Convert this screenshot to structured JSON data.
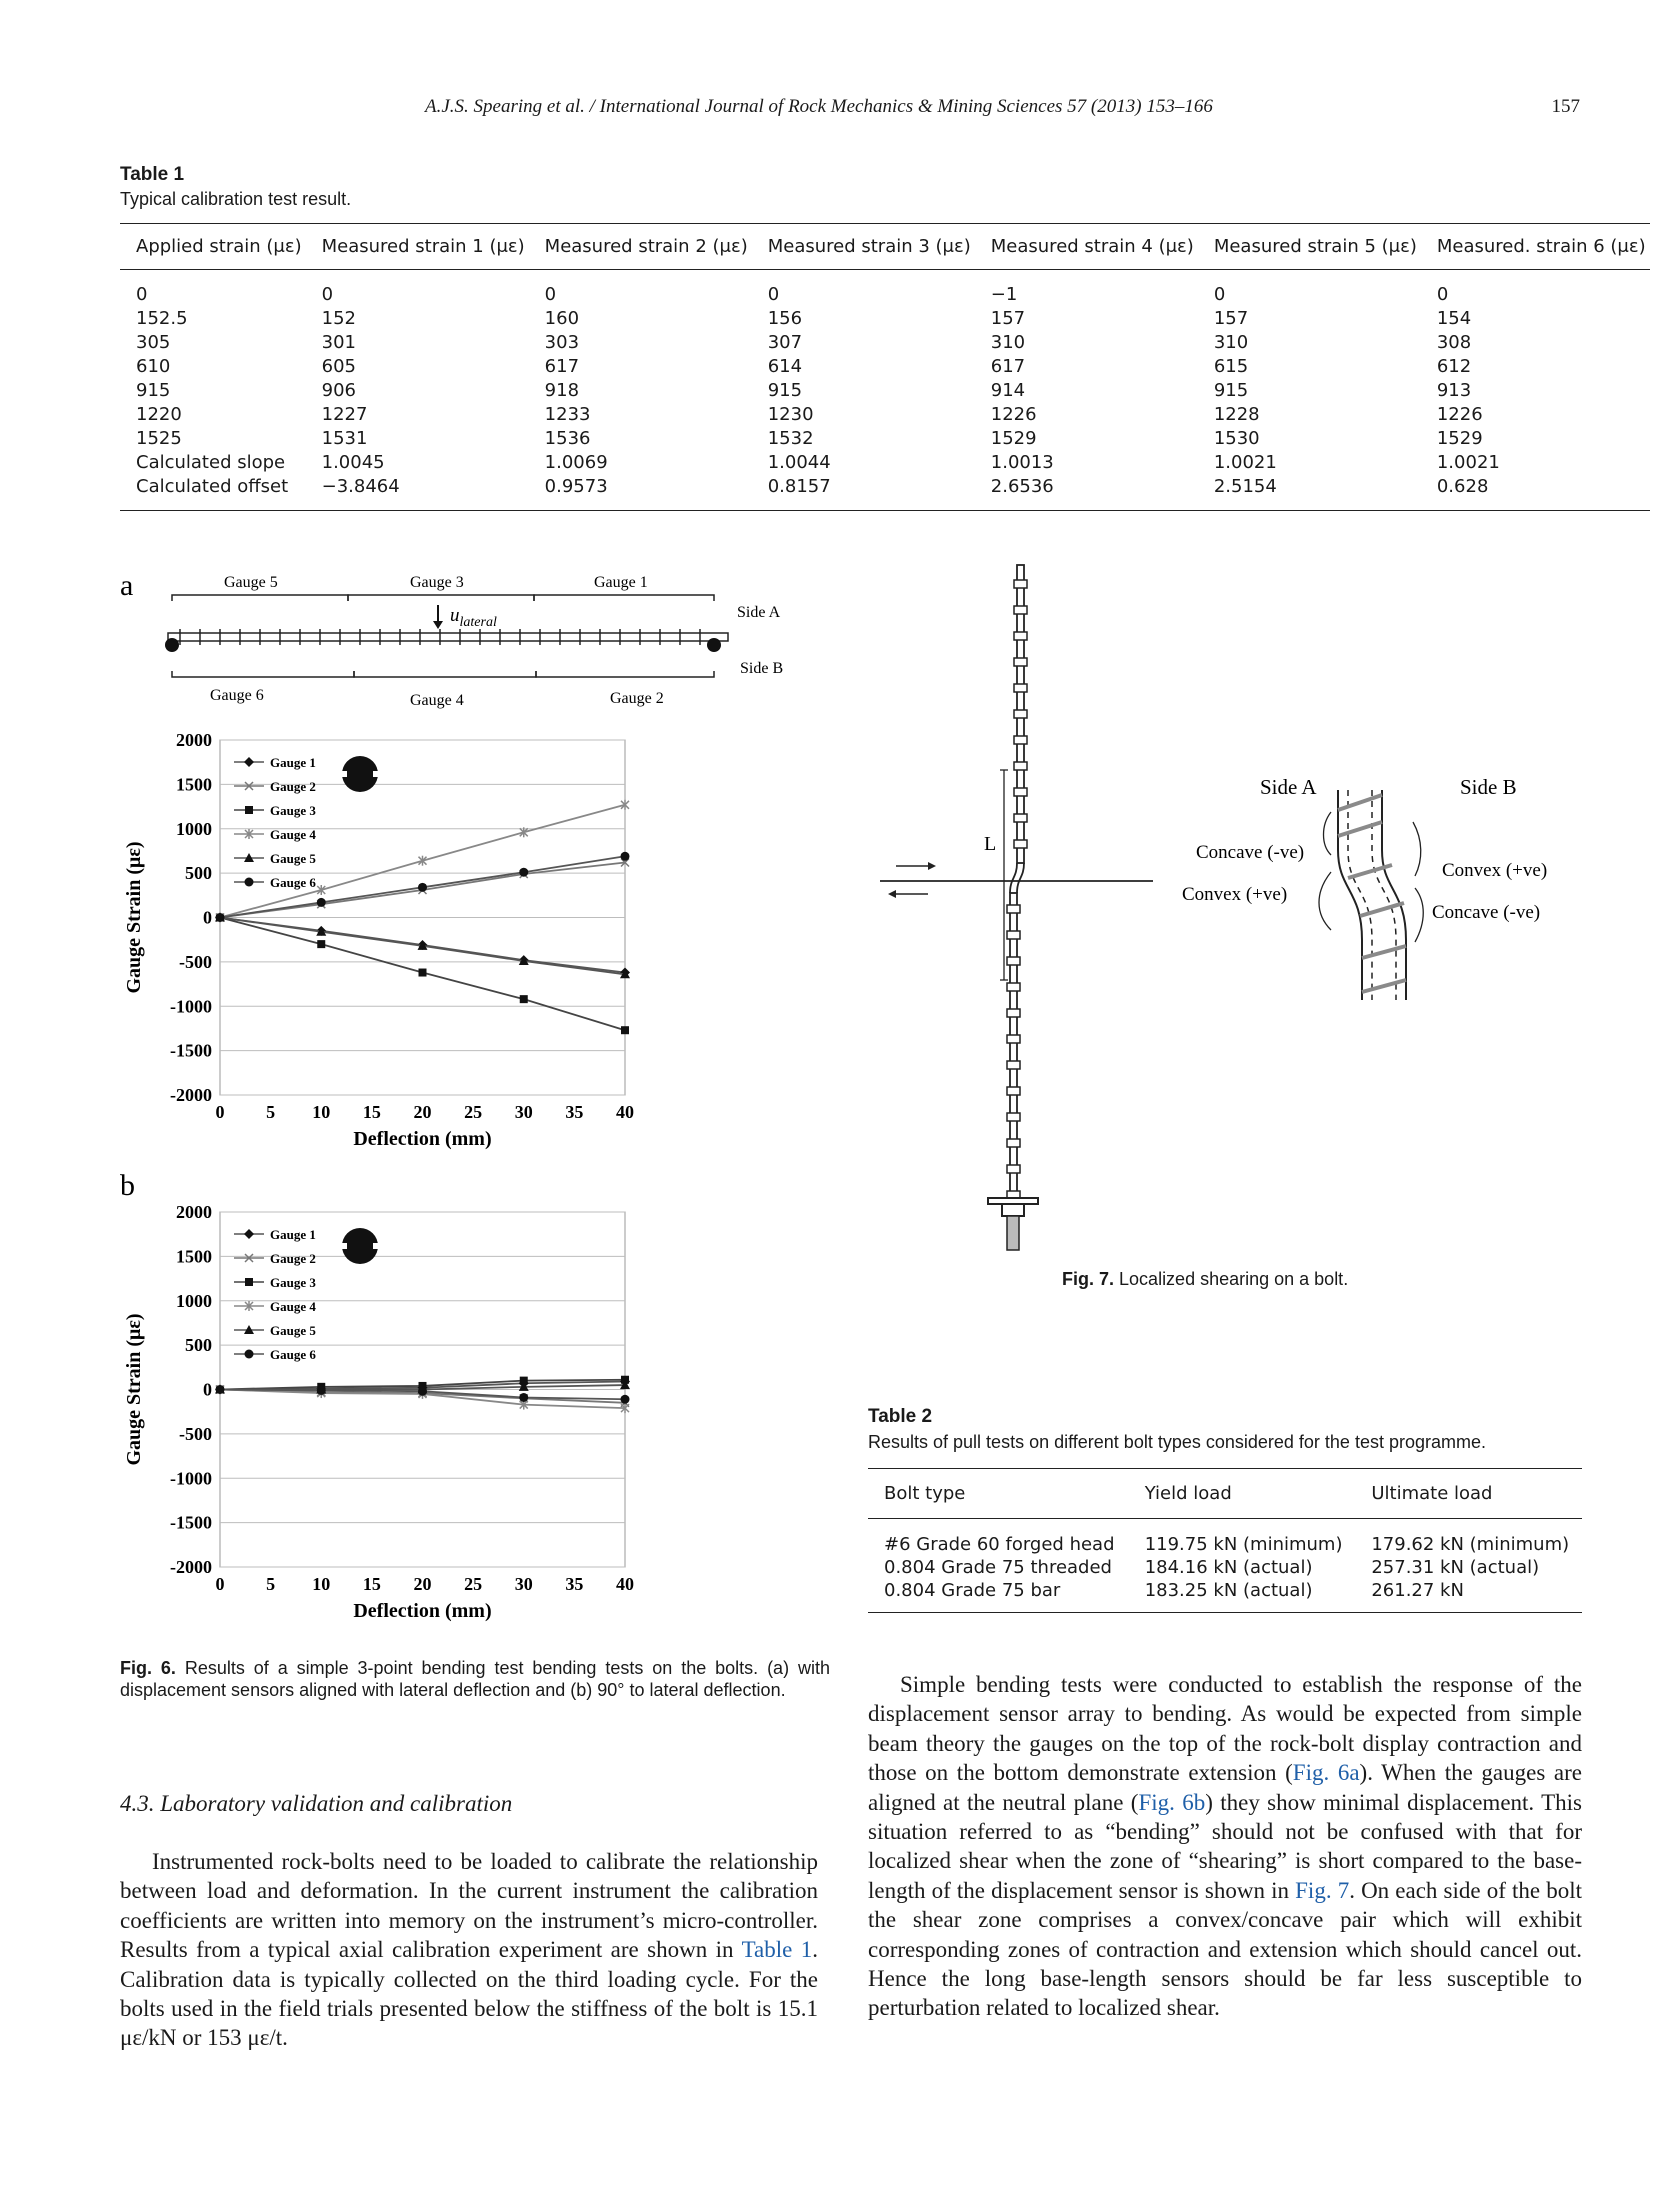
{
  "header": {
    "journal": "A.J.S. Spearing et al. / International Journal of Rock Mechanics & Mining Sciences 57 (2013) 153–166",
    "page_number": "157"
  },
  "table1": {
    "label": "Table 1",
    "caption": "Typical calibration test result.",
    "columns": [
      "Applied strain (με)",
      "Measured strain 1 (με)",
      "Measured strain 2 (με)",
      "Measured strain 3 (με)",
      "Measured strain 4 (με)",
      "Measured strain 5 (με)",
      "Measured. strain 6 (με)"
    ],
    "rows": [
      [
        "0",
        "0",
        "0",
        "0",
        "−1",
        "0",
        "0"
      ],
      [
        "152.5",
        "152",
        "160",
        "156",
        "157",
        "157",
        "154"
      ],
      [
        "305",
        "301",
        "303",
        "307",
        "310",
        "310",
        "308"
      ],
      [
        "610",
        "605",
        "617",
        "614",
        "617",
        "615",
        "612"
      ],
      [
        "915",
        "906",
        "918",
        "915",
        "914",
        "915",
        "913"
      ],
      [
        "1220",
        "1227",
        "1233",
        "1230",
        "1226",
        "1228",
        "1226"
      ],
      [
        "1525",
        "1531",
        "1536",
        "1532",
        "1529",
        "1530",
        "1529"
      ],
      [
        "Calculated slope",
        "1.0045",
        "1.0069",
        "1.0044",
        "1.0013",
        "1.0021",
        "1.0021"
      ],
      [
        "Calculated offset",
        "−3.8464",
        "0.9573",
        "0.8157",
        "2.6536",
        "2.5154",
        "0.628"
      ]
    ]
  },
  "fig6": {
    "panel_a_label": "a",
    "panel_b_label": "b",
    "diagram": {
      "top_gauges": [
        "Gauge 5",
        "Gauge  3",
        "Gauge 1"
      ],
      "bottom_gauges": [
        "Gauge 6",
        "Gauge 4",
        "Gauge 2"
      ],
      "side_a": "Side A",
      "side_b": "Side B",
      "load_label": "u",
      "load_subscript": "lateral"
    },
    "caption_label": "Fig. 6.",
    "caption_text": "Results of a simple 3-point bending test bending tests on the bolts. (a) with displacement sensors aligned with lateral deflection and (b) 90° to lateral deflection."
  },
  "chart_data": [
    {
      "type": "line",
      "panel": "a",
      "xlabel": "Deflection (mm)",
      "ylabel": "Gauge Strain (με)",
      "xlim": [
        0,
        40
      ],
      "ylim": [
        -2000,
        2000
      ],
      "x_ticks": [
        "0",
        "5",
        "10",
        "15",
        "20",
        "25",
        "30",
        "35",
        "40"
      ],
      "y_ticks": [
        "2000",
        "1500",
        "1000",
        "500",
        "0",
        "-500",
        "-1000",
        "-1500",
        "-2000"
      ],
      "grid": true,
      "legend_position": "top-left",
      "x": [
        0,
        10,
        20,
        30,
        40
      ],
      "series": [
        {
          "name": "Gauge 1",
          "marker": "diamond",
          "values": [
            0,
            -150,
            -310,
            -480,
            -620
          ]
        },
        {
          "name": "Gauge 2",
          "marker": "x",
          "values": [
            0,
            150,
            310,
            490,
            620
          ]
        },
        {
          "name": "Gauge 3",
          "marker": "square",
          "values": [
            0,
            -300,
            -620,
            -920,
            -1270
          ]
        },
        {
          "name": "Gauge 4",
          "marker": "star",
          "values": [
            0,
            310,
            640,
            960,
            1270
          ]
        },
        {
          "name": "Gauge 5",
          "marker": "triangle",
          "values": [
            0,
            -160,
            -320,
            -490,
            -640
          ]
        },
        {
          "name": "Gauge 6",
          "marker": "circle",
          "values": [
            0,
            170,
            340,
            510,
            690
          ]
        }
      ]
    },
    {
      "type": "line",
      "panel": "b",
      "xlabel": "Deflection (mm)",
      "ylabel": "Gauge Strain (με)",
      "xlim": [
        0,
        40
      ],
      "ylim": [
        -2000,
        2000
      ],
      "x_ticks": [
        "0",
        "5",
        "10",
        "15",
        "20",
        "25",
        "30",
        "35",
        "40"
      ],
      "y_ticks": [
        "2000",
        "1500",
        "1000",
        "500",
        "0",
        "-500",
        "-1000",
        "-1500",
        "-2000"
      ],
      "grid": true,
      "legend_position": "top-left",
      "x": [
        0,
        10,
        20,
        30,
        40
      ],
      "series": [
        {
          "name": "Gauge 1",
          "marker": "diamond",
          "values": [
            0,
            10,
            20,
            70,
            90
          ]
        },
        {
          "name": "Gauge 2",
          "marker": "x",
          "values": [
            0,
            -30,
            -40,
            -100,
            -150
          ]
        },
        {
          "name": "Gauge 3",
          "marker": "square",
          "values": [
            0,
            30,
            40,
            100,
            110
          ]
        },
        {
          "name": "Gauge 4",
          "marker": "star",
          "values": [
            0,
            -40,
            -50,
            -170,
            -210
          ]
        },
        {
          "name": "Gauge 5",
          "marker": "triangle",
          "values": [
            0,
            0,
            0,
            30,
            50
          ]
        },
        {
          "name": "Gauge 6",
          "marker": "circle",
          "values": [
            0,
            -10,
            -20,
            -90,
            -110
          ]
        }
      ]
    }
  ],
  "fig7": {
    "L_label": "L",
    "side_a": "Side A",
    "side_b": "Side B",
    "concave_left": "Concave (-ve)",
    "convex_left": "Convex (+ve)",
    "convex_right": "Convex (+ve)",
    "concave_right": "Concave (-ve)",
    "caption_label": "Fig. 7.",
    "caption_text": "Localized shearing on a bolt."
  },
  "table2": {
    "label": "Table 2",
    "caption": "Results of pull tests on different bolt types considered for the test programme.",
    "columns": [
      "Bolt type",
      "Yield load",
      "Ultimate load"
    ],
    "rows": [
      [
        "#6 Grade 60 forged head",
        "119.75 kN (minimum)",
        "179.62 kN (minimum)"
      ],
      [
        "0.804 Grade 75 threaded",
        "184.16 kN (actual)",
        "257.31 kN (actual)"
      ],
      [
        "0.804 Grade 75 bar",
        "183.25 kN (actual)",
        "261.27 kN"
      ]
    ]
  },
  "section": {
    "heading": "4.3.  Laboratory validation and calibration",
    "para_left": [
      "Instrumented rock-bolts need to be loaded to calibrate the relationship between load and deformation. In the current instrument the calibration coefficients are written into memory on the instrument’s micro-controller. Results from a typical axial calibration experiment are shown in ",
      "Table 1",
      ". Calibration data is typically collected on the third loading cycle. For the bolts used in the field trials presented below the stiffness of the bolt is 15.1 με/kN or 153 με/t."
    ],
    "para_right": [
      "Simple bending tests were conducted to establish the response of the displacement sensor array to bending. As would be expected from simple beam theory the gauges on the top of the rock-bolt display contraction and those on the bottom demonstrate extension (",
      "Fig. 6a",
      "). When the gauges are aligned at the neutral plane (",
      "Fig. 6b",
      ") they show minimal displacement. This situation referred to as “bending” should not be confused with that for localized shear when the zone of “shearing” is short compared to the base-length of the displacement sensor is shown in ",
      "Fig. 7",
      ". On each side of the bolt the shear zone comprises a convex/concave pair which will exhibit corresponding zones of contraction and extension which should cancel out. Hence the long base-length sensors should be far less susceptible to perturbation related to localized shear."
    ]
  }
}
